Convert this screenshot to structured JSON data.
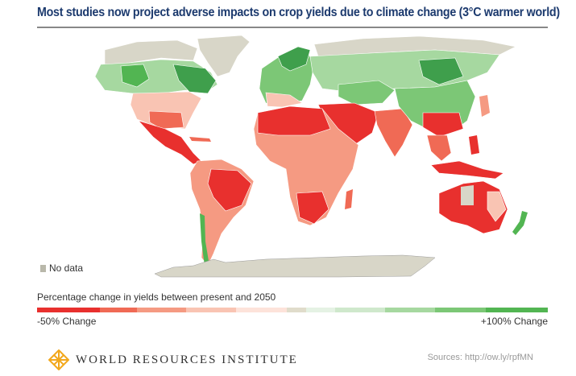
{
  "title": "Most studies now project adverse impacts on crop yields due to climate change (3°C warmer world)",
  "legend": {
    "no_data_label": "No data",
    "no_data_color": "#b9b8aa",
    "title": "Percentage change in yields between present and 2050",
    "min_label": "-50% Change",
    "max_label": "+100% Change",
    "scale_colors": [
      "#e8302e",
      "#f06a55",
      "#f59a82",
      "#f9c4b3",
      "#fde3da",
      "#e0dccb",
      "#e5f2e4",
      "#cfe8cc",
      "#a6d8a0",
      "#7cc776",
      "#52b552"
    ]
  },
  "footer": {
    "organization": "WORLD RESOURCES INSTITUTE",
    "sources": "Sources: http://ow.ly/rpfMN",
    "logo_color": "#f2a81d"
  }
}
